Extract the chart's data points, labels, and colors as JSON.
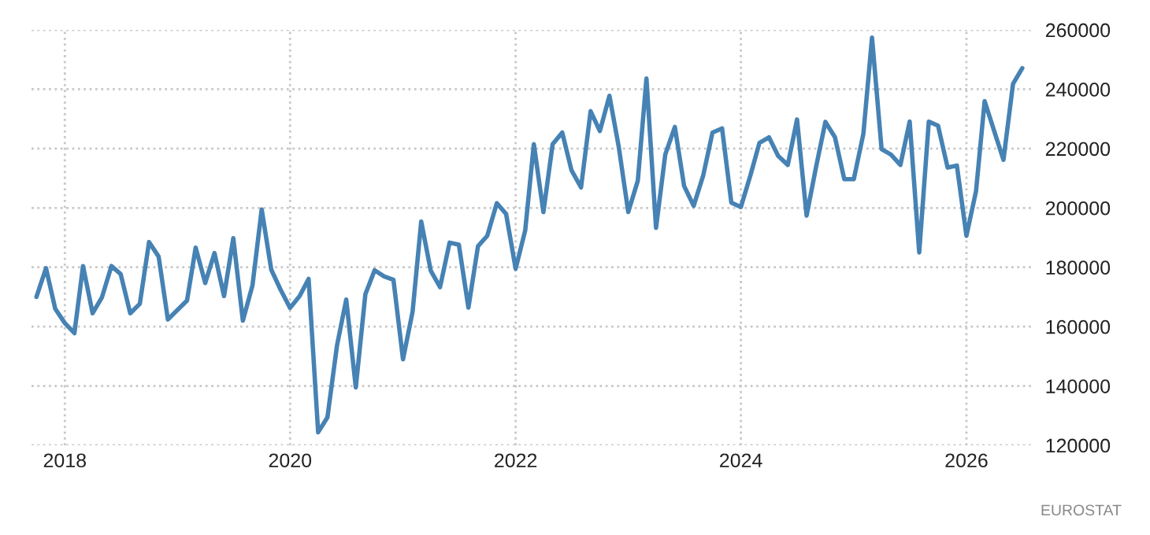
{
  "chart_data": {
    "type": "line",
    "x": [
      "2017-10",
      "2017-11",
      "2017-12",
      "2018-01",
      "2018-02",
      "2018-03",
      "2018-04",
      "2018-05",
      "2018-06",
      "2018-07",
      "2018-08",
      "2018-09",
      "2018-10",
      "2018-11",
      "2018-12",
      "2019-01",
      "2019-02",
      "2019-03",
      "2019-04",
      "2019-05",
      "2019-06",
      "2019-07",
      "2019-08",
      "2019-09",
      "2019-10",
      "2019-11",
      "2019-12",
      "2020-01",
      "2020-02",
      "2020-03",
      "2020-04",
      "2020-05",
      "2020-06",
      "2020-07",
      "2020-08",
      "2020-09",
      "2020-10",
      "2020-11",
      "2020-12",
      "2021-01",
      "2021-02",
      "2021-03",
      "2021-04",
      "2021-05",
      "2021-06",
      "2021-07",
      "2021-08",
      "2021-09",
      "2021-10",
      "2021-11",
      "2021-12",
      "2022-01",
      "2022-02",
      "2022-03",
      "2022-04",
      "2022-05",
      "2022-06",
      "2022-07",
      "2022-08",
      "2022-09",
      "2022-10",
      "2022-11",
      "2022-12",
      "2023-01",
      "2023-02",
      "2023-03",
      "2023-04",
      "2023-05",
      "2023-06",
      "2023-07",
      "2023-08",
      "2023-09",
      "2023-10",
      "2023-11",
      "2023-12",
      "2024-01",
      "2024-02",
      "2024-03",
      "2024-04",
      "2024-05",
      "2024-06",
      "2024-07",
      "2024-08",
      "2024-09",
      "2024-10",
      "2024-11",
      "2024-12",
      "2025-01",
      "2025-02",
      "2025-03",
      "2025-04",
      "2025-05",
      "2025-06",
      "2025-07",
      "2025-08",
      "2025-09",
      "2025-10",
      "2025-11",
      "2025-12",
      "2026-01",
      "2026-02",
      "2026-03",
      "2026-04",
      "2026-05",
      "2026-06",
      "2026-07"
    ],
    "series": [
      {
        "color": "#4682b4",
        "values": [
          170000,
          179700,
          166000,
          161200,
          157800,
          180400,
          164500,
          169800,
          180400,
          177700,
          164500,
          167700,
          188500,
          183600,
          162400,
          165600,
          168800,
          186600,
          174700,
          184800,
          170300,
          189800,
          162000,
          173800,
          199500,
          179200,
          172500,
          166300,
          170300,
          176100,
          124400,
          129400,
          153600,
          169100,
          139500,
          170900,
          179000,
          176900,
          175800,
          149000,
          165000,
          195400,
          178800,
          173300,
          188300,
          187600,
          166400,
          187100,
          190600,
          201600,
          198000,
          179500,
          192400,
          221500,
          198600,
          221500,
          225400,
          212700,
          206900,
          232600,
          225900,
          237800,
          220700,
          198600,
          209200,
          243600,
          193300,
          218000,
          227300,
          207400,
          200700,
          211000,
          225400,
          226800,
          201800,
          200300,
          211000,
          221900,
          223800,
          217500,
          214500,
          229800,
          197400,
          214000,
          229000,
          223800,
          209700,
          209700,
          225000,
          257400,
          219800,
          218000,
          214500,
          229100,
          185000,
          229100,
          227700,
          213600,
          214300,
          190600,
          205600,
          236000,
          225900,
          216200,
          241800,
          247100
        ]
      }
    ],
    "xlim": [
      "2017-09-15",
      "2026-08-01"
    ],
    "xticks": [
      "2018",
      "2020",
      "2022",
      "2024",
      "2026"
    ],
    "ylim": [
      120000,
      260000
    ],
    "yticks": [
      120000,
      140000,
      160000,
      180000,
      200000,
      220000,
      240000,
      260000
    ],
    "grid": true,
    "line_style": "solid",
    "annotations": [
      "EUROSTAT"
    ]
  }
}
